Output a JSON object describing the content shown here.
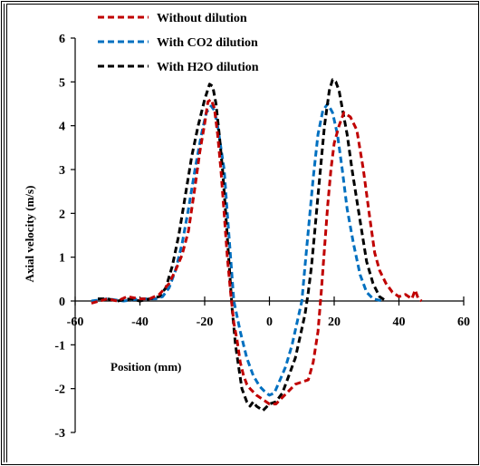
{
  "chart_data": {
    "type": "line",
    "title": "",
    "xlabel": "Position (mm)",
    "ylabel": "Axial velocity (m/s)",
    "xlim": [
      -60,
      60
    ],
    "ylim": [
      -3,
      6
    ],
    "x_ticks": [
      -60,
      -40,
      -20,
      0,
      20,
      40,
      60
    ],
    "y_ticks": [
      -3,
      -2,
      -1,
      0,
      1,
      2,
      3,
      4,
      5,
      6
    ],
    "x_tick_labels": [
      "-60",
      "-40",
      "-20",
      "0",
      "20",
      "40",
      "60"
    ],
    "y_tick_labels": [
      "-3",
      "-2",
      "-1",
      "0",
      "1",
      "2",
      "3",
      "4",
      "5",
      "6"
    ],
    "grid": false,
    "legend_position": "top-left",
    "series": [
      {
        "name": "Without dilution",
        "color": "#c00000",
        "points": [
          [
            -55,
            -0.05
          ],
          [
            -50,
            0.05
          ],
          [
            -47,
            0.0
          ],
          [
            -44,
            0.1
          ],
          [
            -40,
            0.05
          ],
          [
            -37,
            0.05
          ],
          [
            -34,
            0.15
          ],
          [
            -31,
            0.4
          ],
          [
            -29,
            0.7
          ],
          [
            -27,
            1.05
          ],
          [
            -25,
            1.6
          ],
          [
            -23,
            2.6
          ],
          [
            -21.5,
            3.4
          ],
          [
            -20,
            4.05
          ],
          [
            -19,
            4.55
          ],
          [
            -18,
            4.6
          ],
          [
            -17,
            4.4
          ],
          [
            -16,
            3.8
          ],
          [
            -15,
            3.0
          ],
          [
            -14,
            2.0
          ],
          [
            -13,
            1.0
          ],
          [
            -12,
            0.2
          ],
          [
            -11,
            -0.5
          ],
          [
            -10,
            -0.9
          ],
          [
            -9,
            -1.4
          ],
          [
            -8,
            -1.7
          ],
          [
            -7,
            -1.9
          ],
          [
            -6,
            -2.0
          ],
          [
            -4,
            -2.15
          ],
          [
            -2,
            -2.25
          ],
          [
            0,
            -2.35
          ],
          [
            2,
            -2.35
          ],
          [
            4,
            -2.2
          ],
          [
            6,
            -2.05
          ],
          [
            8,
            -1.9
          ],
          [
            10,
            -1.85
          ],
          [
            12,
            -1.8
          ],
          [
            13.5,
            -1.4
          ],
          [
            15,
            -0.7
          ],
          [
            16,
            0.2
          ],
          [
            17,
            1.2
          ],
          [
            18,
            2.2
          ],
          [
            19,
            3.0
          ],
          [
            20,
            3.6
          ],
          [
            21.5,
            4.0
          ],
          [
            23,
            4.3
          ],
          [
            25,
            4.2
          ],
          [
            27,
            3.9
          ],
          [
            29,
            3.0
          ],
          [
            31,
            1.9
          ],
          [
            32.5,
            1.1
          ],
          [
            34,
            0.7
          ],
          [
            36,
            0.4
          ],
          [
            38,
            0.2
          ],
          [
            40,
            0.1
          ],
          [
            42,
            0.15
          ],
          [
            44,
            0.05
          ],
          [
            45,
            0.25
          ],
          [
            46,
            0.05
          ],
          [
            47,
            0.0
          ]
        ]
      },
      {
        "name": "With CO2 dilution",
        "color": "#0070c0",
        "points": [
          [
            -55,
            0.0
          ],
          [
            -50,
            0.05
          ],
          [
            -45,
            0.0
          ],
          [
            -40,
            0.05
          ],
          [
            -35,
            0.05
          ],
          [
            -33,
            0.1
          ],
          [
            -31,
            0.3
          ],
          [
            -29,
            0.7
          ],
          [
            -27,
            1.3
          ],
          [
            -25,
            2.1
          ],
          [
            -23,
            3.0
          ],
          [
            -21,
            3.8
          ],
          [
            -19.5,
            4.3
          ],
          [
            -18,
            4.45
          ],
          [
            -17,
            4.35
          ],
          [
            -16,
            4.0
          ],
          [
            -14,
            3.0
          ],
          [
            -13,
            2.0
          ],
          [
            -12,
            1.0
          ],
          [
            -11,
            0.0
          ],
          [
            -9,
            -0.7
          ],
          [
            -7,
            -1.3
          ],
          [
            -5,
            -1.7
          ],
          [
            -3,
            -1.95
          ],
          [
            -1,
            -2.1
          ],
          [
            0,
            -2.15
          ],
          [
            1.5,
            -2.1
          ],
          [
            3,
            -1.85
          ],
          [
            5,
            -1.5
          ],
          [
            7,
            -1.0
          ],
          [
            8.5,
            -0.5
          ],
          [
            10,
            0.0
          ],
          [
            11,
            0.8
          ],
          [
            12,
            1.6
          ],
          [
            13.5,
            2.8
          ],
          [
            15,
            3.8
          ],
          [
            16.5,
            4.35
          ],
          [
            18,
            4.5
          ],
          [
            19.5,
            4.3
          ],
          [
            21,
            3.8
          ],
          [
            22.5,
            3.0
          ],
          [
            24,
            2.1
          ],
          [
            26,
            1.3
          ],
          [
            28,
            0.6
          ],
          [
            30,
            0.2
          ],
          [
            32,
            0.05
          ],
          [
            35,
            0.0
          ]
        ]
      },
      {
        "name": "With H2O dilution",
        "color": "#000000",
        "points": [
          [
            -53,
            0.05
          ],
          [
            -50,
            0.05
          ],
          [
            -47,
            0.0
          ],
          [
            -43,
            0.05
          ],
          [
            -40,
            0.0
          ],
          [
            -37,
            0.05
          ],
          [
            -34,
            0.1
          ],
          [
            -32,
            0.3
          ],
          [
            -30,
            0.8
          ],
          [
            -28,
            1.5
          ],
          [
            -26,
            2.4
          ],
          [
            -24,
            3.3
          ],
          [
            -22,
            4.0
          ],
          [
            -20,
            4.6
          ],
          [
            -18.5,
            4.95
          ],
          [
            -17.5,
            4.9
          ],
          [
            -16.5,
            4.5
          ],
          [
            -15.5,
            3.8
          ],
          [
            -14.5,
            3.0
          ],
          [
            -13.5,
            2.0
          ],
          [
            -12.5,
            0.9
          ],
          [
            -11.5,
            -0.2
          ],
          [
            -10.5,
            -1.0
          ],
          [
            -9.5,
            -1.5
          ],
          [
            -8.5,
            -2.0
          ],
          [
            -7,
            -2.3
          ],
          [
            -6,
            -2.4
          ],
          [
            -5,
            -2.3
          ],
          [
            -4,
            -2.4
          ],
          [
            -2,
            -2.5
          ],
          [
            0,
            -2.35
          ],
          [
            2,
            -2.3
          ],
          [
            4,
            -2.1
          ],
          [
            6,
            -1.7
          ],
          [
            8,
            -1.3
          ],
          [
            9.5,
            -0.8
          ],
          [
            11,
            -0.3
          ],
          [
            12,
            0.2
          ],
          [
            13,
            0.8
          ],
          [
            14,
            1.6
          ],
          [
            15,
            2.4
          ],
          [
            16,
            3.2
          ],
          [
            17,
            4.0
          ],
          [
            18.5,
            4.8
          ],
          [
            19.5,
            5.05
          ],
          [
            20.5,
            5.0
          ],
          [
            21.5,
            4.8
          ],
          [
            22.5,
            4.4
          ],
          [
            24,
            3.8
          ],
          [
            25.5,
            3.0
          ],
          [
            27,
            2.3
          ],
          [
            28.5,
            1.6
          ],
          [
            30,
            0.9
          ],
          [
            32,
            0.4
          ],
          [
            34,
            0.1
          ],
          [
            36,
            0.0
          ]
        ]
      }
    ]
  }
}
